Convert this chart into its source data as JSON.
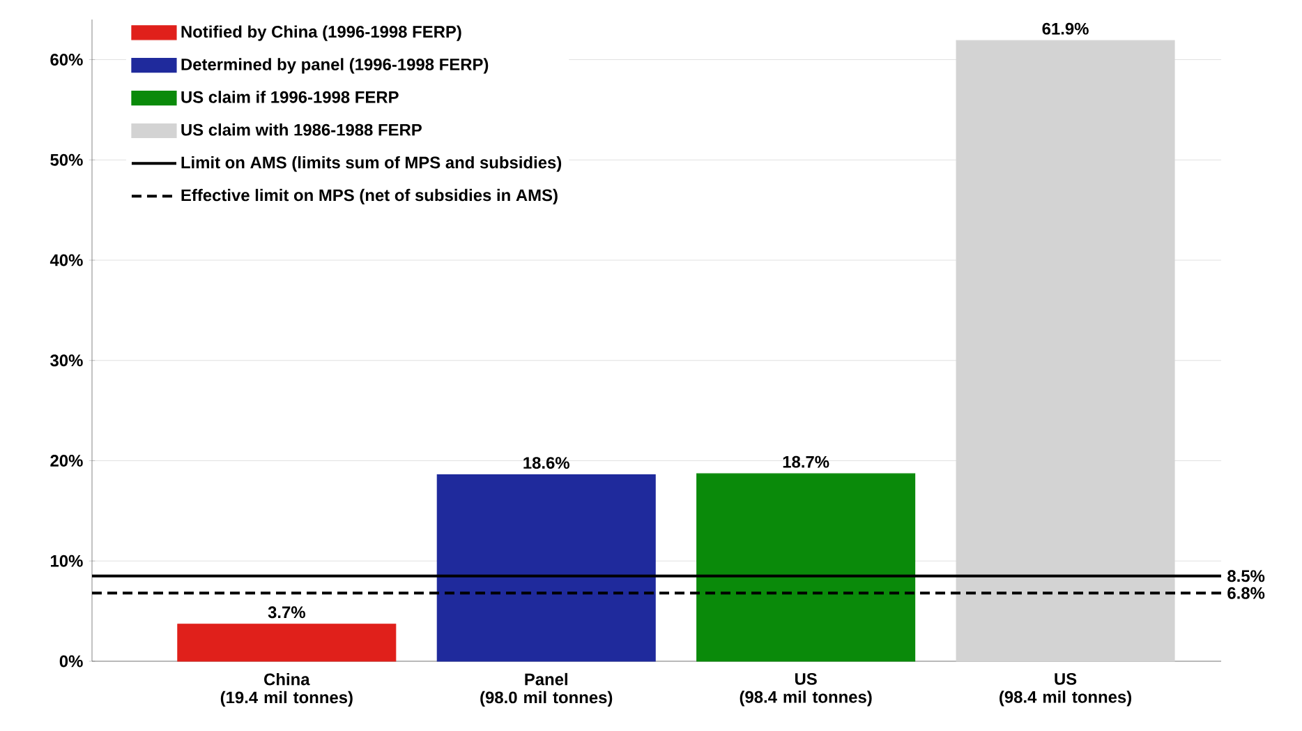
{
  "chart_data": {
    "type": "bar",
    "categories": [
      "China (19.4 mil tonnes)",
      "Panel (98.0 mil tonnes)",
      "US (98.4 mil tonnes)",
      "US (98.4 mil tonnes)"
    ],
    "series": [
      {
        "name": "Notified by China (1996-1998 FERP)",
        "color": "#e0201b",
        "values": [
          3.7,
          null,
          null,
          null
        ],
        "value_labels": [
          "3.7%",
          null,
          null,
          null
        ]
      },
      {
        "name": "Determined by panel (1996-1998 FERP)",
        "color": "#1f2a9c",
        "values": [
          null,
          18.6,
          null,
          null
        ],
        "value_labels": [
          null,
          "18.6%",
          null,
          null
        ]
      },
      {
        "name": "US claim if 1996-1998 FERP",
        "color": "#0a8a0a",
        "values": [
          null,
          null,
          18.7,
          null
        ],
        "value_labels": [
          null,
          null,
          "18.7%",
          null
        ]
      },
      {
        "name": "US claim with 1986-1988 FERP",
        "color": "#d3d3d3",
        "values": [
          null,
          null,
          null,
          61.9
        ],
        "value_labels": [
          null,
          null,
          null,
          "61.9%"
        ]
      }
    ],
    "ref_lines": [
      {
        "axis": "y",
        "value": 8.5,
        "label": "Limit on AMS (limits sum of MPS and subsidies)",
        "color": "#000000",
        "line_style": "solid"
      },
      {
        "axis": "y",
        "value": 6.8,
        "label": "Effective limit on MPS (net of subsidies in AMS)",
        "color": "#000000",
        "line_style": "dashed"
      }
    ],
    "annotations": [
      "8.5%",
      "6.8%"
    ],
    "ylim": [
      0,
      64
    ],
    "yticks": [
      {
        "value": 0,
        "label": "0%"
      },
      {
        "value": 10,
        "label": "10%"
      },
      {
        "value": 20,
        "label": "20%"
      },
      {
        "value": 30,
        "label": "30%"
      },
      {
        "value": 40,
        "label": "40%"
      },
      {
        "value": 50,
        "label": "50%"
      },
      {
        "value": 60,
        "label": "60%"
      }
    ],
    "grid": "y",
    "legend": "top left"
  }
}
